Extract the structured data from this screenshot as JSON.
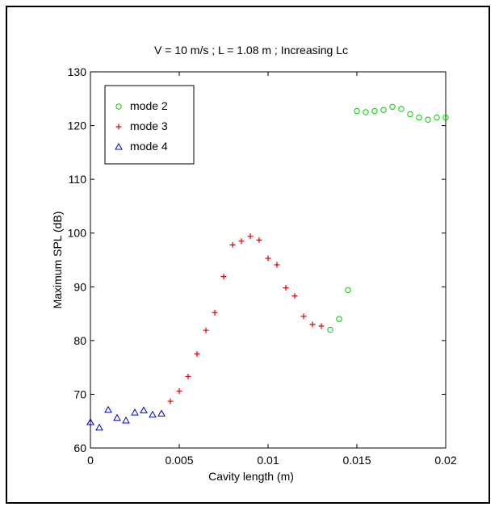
{
  "chart_data": {
    "type": "scatter",
    "title": "V = 10 m/s ; L = 1.08 m ;  Increasing Lc",
    "xlabel": "Cavity length (m)",
    "ylabel": "Maximum SPL (dB)",
    "xlim": [
      0,
      0.02
    ],
    "ylim": [
      60,
      130
    ],
    "x_ticks": [
      0,
      0.005,
      0.01,
      0.015,
      0.02
    ],
    "x_tick_labels": [
      "0",
      "0.005",
      "0.01",
      "0.015",
      "0.02"
    ],
    "y_ticks": [
      60,
      70,
      80,
      90,
      100,
      110,
      120,
      130
    ],
    "y_tick_labels": [
      "60",
      "70",
      "80",
      "90",
      "100",
      "110",
      "120",
      "130"
    ],
    "grid": false,
    "legend_position": "top-left",
    "series": [
      {
        "name": "mode 2",
        "marker": "circle",
        "color": "#00cc00",
        "x": [
          0.0135,
          0.014,
          0.0145,
          0.015,
          0.0155,
          0.016,
          0.0165,
          0.017,
          0.0175,
          0.018,
          0.0185,
          0.019,
          0.0195,
          0.02
        ],
        "y": [
          82.0,
          84.0,
          89.4,
          122.7,
          122.5,
          122.7,
          122.9,
          123.5,
          123.1,
          122.1,
          121.5,
          121.1,
          121.5,
          121.5
        ]
      },
      {
        "name": "mode 3",
        "marker": "plus",
        "color": "#e00000",
        "x": [
          0.0045,
          0.005,
          0.0055,
          0.006,
          0.0065,
          0.007,
          0.0075,
          0.008,
          0.0085,
          0.009,
          0.0095,
          0.01,
          0.0105,
          0.011,
          0.0115,
          0.012,
          0.0125,
          0.013
        ],
        "y": [
          68.7,
          70.6,
          73.3,
          77.5,
          81.9,
          85.2,
          91.9,
          97.8,
          98.5,
          99.4,
          98.7,
          95.3,
          94.1,
          89.8,
          88.3,
          84.5,
          83.0,
          82.7
        ]
      },
      {
        "name": "mode 4",
        "marker": "triangle",
        "color": "#0000cc",
        "x": [
          0,
          0.0005,
          0.001,
          0.0015,
          0.002,
          0.0025,
          0.003,
          0.0035,
          0.004
        ],
        "y": [
          64.8,
          63.8,
          67.1,
          65.6,
          65.1,
          66.6,
          67.0,
          66.2,
          66.4
        ]
      }
    ]
  }
}
